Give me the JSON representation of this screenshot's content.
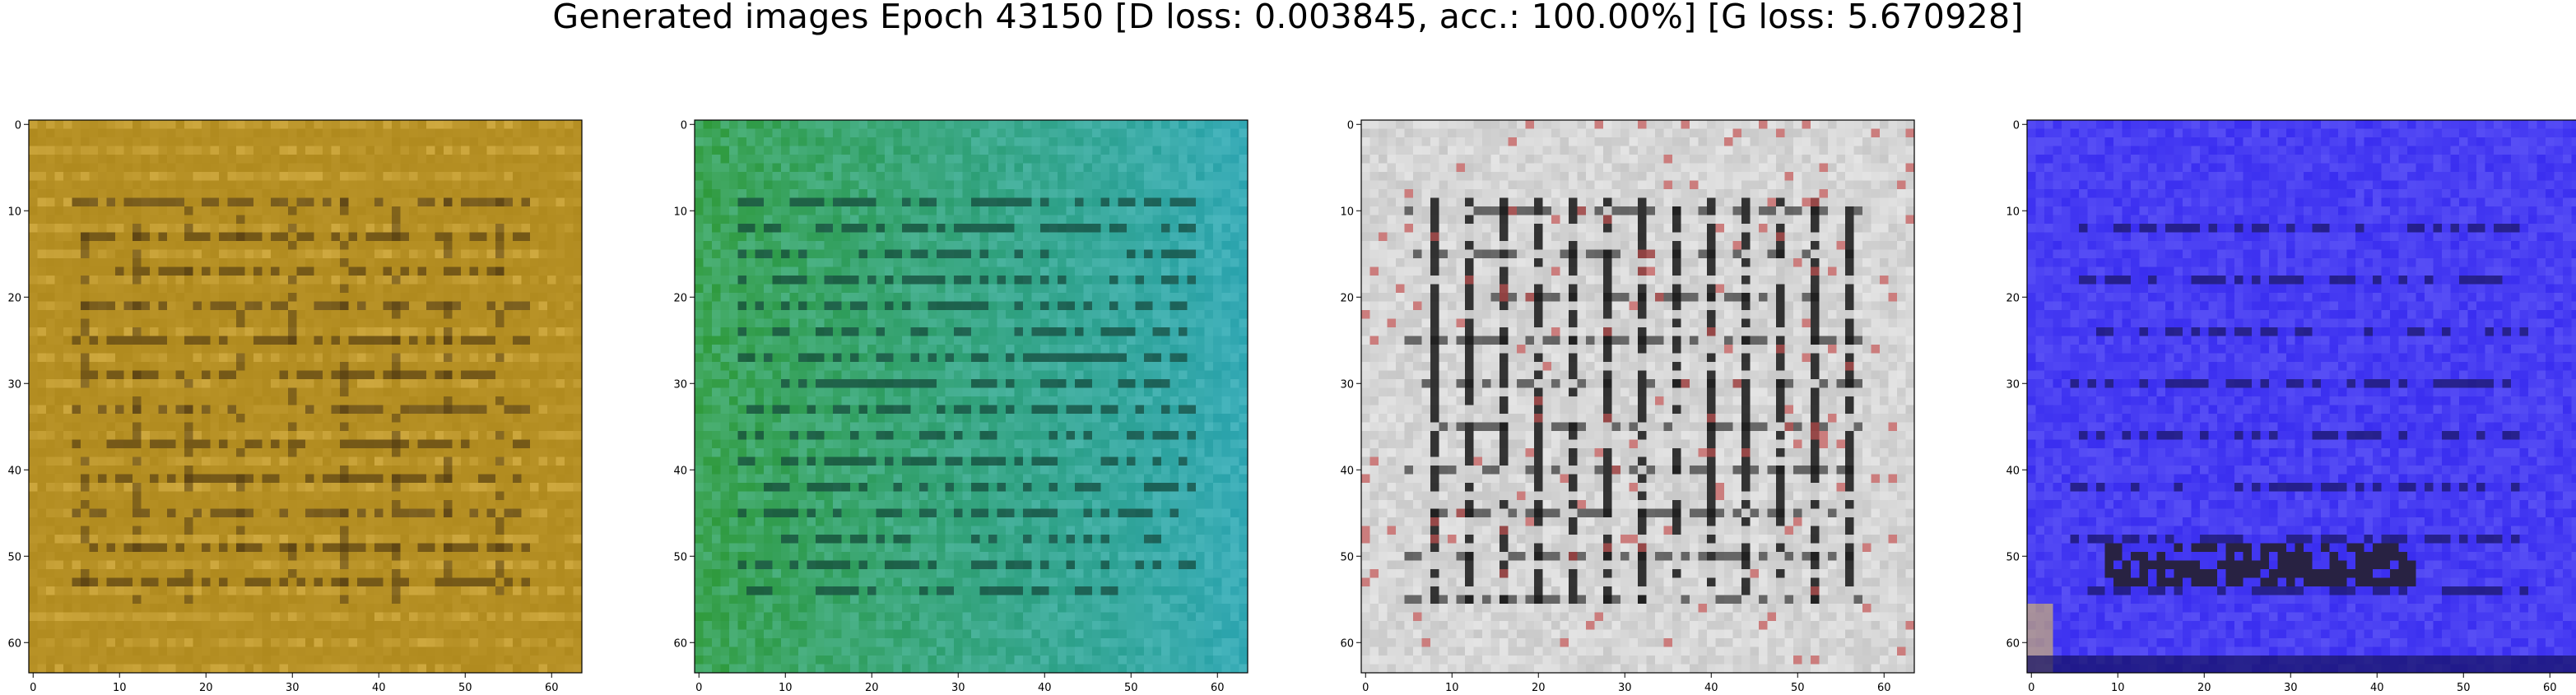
{
  "title": "Generated images Epoch 43150 [D loss: 0.003845, acc.: 100.00%] [G loss: 5.670928]",
  "axis": {
    "x_ticks": [
      "0",
      "10",
      "20",
      "30",
      "40",
      "50",
      "60"
    ],
    "y_ticks": [
      "0",
      "10",
      "20",
      "30",
      "40",
      "50",
      "60"
    ],
    "x_range": [
      -0.5,
      63.5
    ],
    "y_range": [
      -0.5,
      63.5
    ]
  },
  "images": [
    {
      "name": "generated-image-1",
      "palette": {
        "base": "#b08a1e",
        "light": "#e8c25a",
        "dark": "#4a3410",
        "accent": "#c9a640"
      }
    },
    {
      "name": "generated-image-2",
      "palette": {
        "base": "#2aa3b0",
        "light": "#7fd8e0",
        "dark": "#0b3a2c",
        "accent": "#2f9a3a"
      }
    },
    {
      "name": "generated-image-3",
      "palette": {
        "base": "#c8c8c8",
        "light": "#f2f2f2",
        "dark": "#151515",
        "accent": "#c05050"
      }
    },
    {
      "name": "generated-image-4",
      "palette": {
        "base": "#3a2ef0",
        "light": "#8f8cff",
        "dark": "#141060",
        "accent": "#e0c060"
      }
    }
  ]
}
